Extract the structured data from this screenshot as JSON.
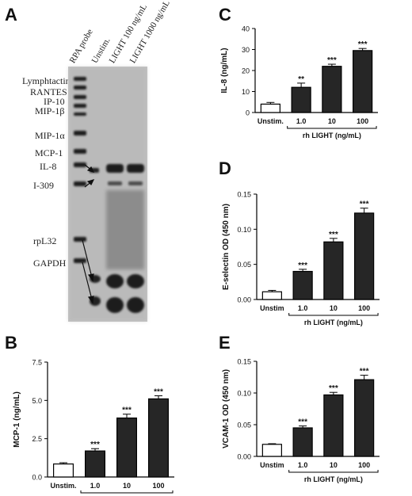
{
  "panels": {
    "a": "A",
    "b": "B",
    "c": "C",
    "d": "D",
    "e": "E"
  },
  "gel": {
    "lanes": [
      "RPA probe",
      "Unstim.",
      "LIGHT 100 ng/mL",
      "LIGHT 1000 ng/mL"
    ],
    "genes": [
      "Lymphtactin",
      "RANTES",
      "IP-10",
      "MIP-1β",
      "MIP-1α",
      "MCP-1",
      "IL-8",
      "I-309",
      "rpL32",
      "GAPDH"
    ]
  },
  "chart_data": [
    {
      "id": "B",
      "type": "bar",
      "categories": [
        "Unstim.",
        "1.0",
        "10",
        "100"
      ],
      "values": [
        0.85,
        1.7,
        3.85,
        5.1
      ],
      "errors": [
        0.08,
        0.15,
        0.25,
        0.2
      ],
      "significance": [
        "",
        "***",
        "***",
        "***"
      ],
      "ylabel": "MCP-1 (ng/mL)",
      "ylim": [
        0,
        7.5
      ],
      "yticks": [
        "0.0",
        "2.5",
        "5.0",
        "7.5"
      ],
      "ytick_values": [
        0,
        2.5,
        5.0,
        7.5
      ],
      "xlabel": "rh LIGHT (ng/mL)"
    },
    {
      "id": "C",
      "type": "bar",
      "categories": [
        "Unstim.",
        "1.0",
        "10",
        "100"
      ],
      "values": [
        4,
        12,
        22,
        29.5
      ],
      "errors": [
        0.8,
        2,
        1,
        1
      ],
      "significance": [
        "",
        "**",
        "***",
        "***"
      ],
      "ylabel": "IL-8 (ng/mL)",
      "ylim": [
        0,
        40
      ],
      "yticks": [
        "0",
        "10",
        "20",
        "30",
        "40"
      ],
      "ytick_values": [
        0,
        10,
        20,
        30,
        40
      ],
      "xlabel": "rh LIGHT (ng/mL)"
    },
    {
      "id": "D",
      "type": "bar",
      "categories": [
        "Unstim",
        "1.0",
        "10",
        "100"
      ],
      "values": [
        0.011,
        0.04,
        0.082,
        0.123
      ],
      "errors": [
        0.002,
        0.003,
        0.005,
        0.007
      ],
      "significance": [
        "",
        "***",
        "***",
        "***"
      ],
      "ylabel": "E-selectin OD (450 nm)",
      "ylim": [
        0,
        0.15
      ],
      "yticks": [
        "0.00",
        "0.05",
        "0.10",
        "0.15"
      ],
      "ytick_values": [
        0,
        0.05,
        0.1,
        0.15
      ],
      "xlabel": "rh LIGHT (ng/mL)"
    },
    {
      "id": "E",
      "type": "bar",
      "categories": [
        "Unstim",
        "1.0",
        "10",
        "100"
      ],
      "values": [
        0.019,
        0.045,
        0.097,
        0.121
      ],
      "errors": [
        0.001,
        0.003,
        0.004,
        0.007
      ],
      "significance": [
        "",
        "***",
        "***",
        "***"
      ],
      "ylabel": "VCAM-1 OD (450 nm)",
      "ylim": [
        0,
        0.15
      ],
      "yticks": [
        "0.00",
        "0.05",
        "0.10",
        "0.15"
      ],
      "ytick_values": [
        0,
        0.05,
        0.1,
        0.15
      ],
      "xlabel": "rh LIGHT (ng/mL)"
    }
  ]
}
